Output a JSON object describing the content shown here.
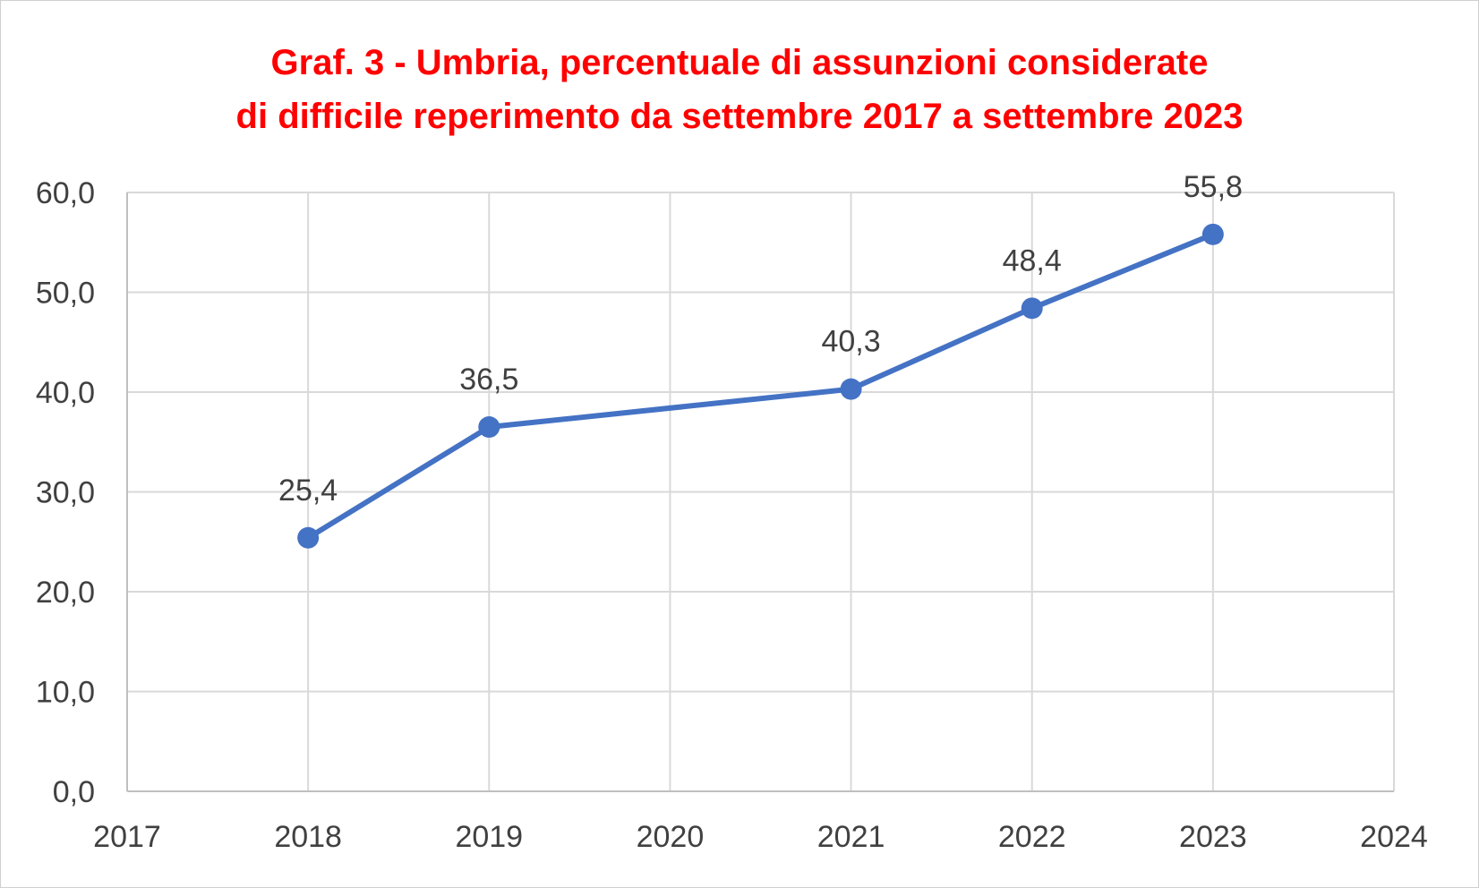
{
  "chart_data": {
    "type": "line",
    "title_lines": [
      "Graf. 3 - Umbria, percentuale di assunzioni considerate",
      "di difficile reperimento da settembre 2017 a settembre 2023"
    ],
    "xlabel": "",
    "ylabel": "",
    "x_ticks": [
      "2017",
      "2018",
      "2019",
      "2020",
      "2021",
      "2022",
      "2023",
      "2024"
    ],
    "xlim": [
      2017,
      2024
    ],
    "y_ticks": [
      "0,0",
      "10,0",
      "20,0",
      "30,0",
      "40,0",
      "50,0",
      "60,0"
    ],
    "ylim": [
      0,
      60
    ],
    "grid": true,
    "series": [
      {
        "x": [
          2018,
          2019,
          2021,
          2022,
          2023
        ],
        "values": [
          25.4,
          36.5,
          40.3,
          48.4,
          55.8
        ],
        "labels": [
          "25,4",
          "36,5",
          "40,3",
          "48,4",
          "55,8"
        ]
      }
    ]
  },
  "colors": {
    "title": "#ff0000",
    "line": "#4472c4",
    "grid": "#d9d9d9",
    "axis_text": "#404040",
    "axis_line": "#bfbfbf"
  }
}
